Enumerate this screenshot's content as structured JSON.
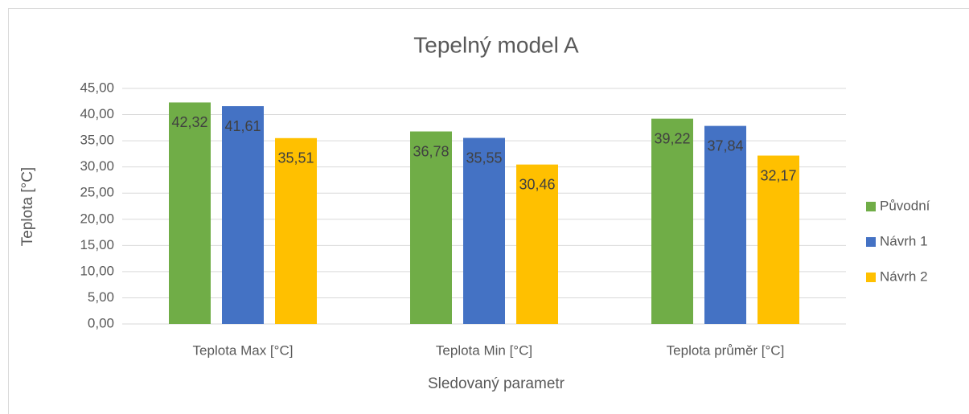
{
  "chart_data": {
    "type": "bar",
    "title": "Tepelný model A",
    "x_label": "Sledovaný parametr",
    "y_label": "Teplota [°C]",
    "categories": [
      "Teplota Max [°C]",
      "Teplota Min [°C]",
      "Teplota průměr [°C]"
    ],
    "series": [
      {
        "name": "Původní",
        "color": "#70ad47",
        "values": [
          42.32,
          36.78,
          39.22
        ],
        "value_labels": [
          "42,32",
          "36,78",
          "39,22"
        ]
      },
      {
        "name": "Návrh 1",
        "color": "#4472c4",
        "values": [
          41.61,
          35.55,
          37.84
        ],
        "value_labels": [
          "41,61",
          "35,55",
          "37,84"
        ]
      },
      {
        "name": "Návrh 2",
        "color": "#ffc000",
        "values": [
          35.51,
          30.46,
          32.17
        ],
        "value_labels": [
          "35,51",
          "30,46",
          "32,17"
        ]
      }
    ],
    "ylim": [
      0,
      45
    ],
    "yticks": [
      {
        "value": 0,
        "label": "0,00"
      },
      {
        "value": 5,
        "label": "5,00"
      },
      {
        "value": 10,
        "label": "10,00"
      },
      {
        "value": 15,
        "label": "15,00"
      },
      {
        "value": 20,
        "label": "20,00"
      },
      {
        "value": 25,
        "label": "25,00"
      },
      {
        "value": 30,
        "label": "30,00"
      },
      {
        "value": 35,
        "label": "35,00"
      },
      {
        "value": 40,
        "label": "40,00"
      },
      {
        "value": 45,
        "label": "45,00"
      }
    ],
    "grid": true,
    "legend": "right"
  }
}
